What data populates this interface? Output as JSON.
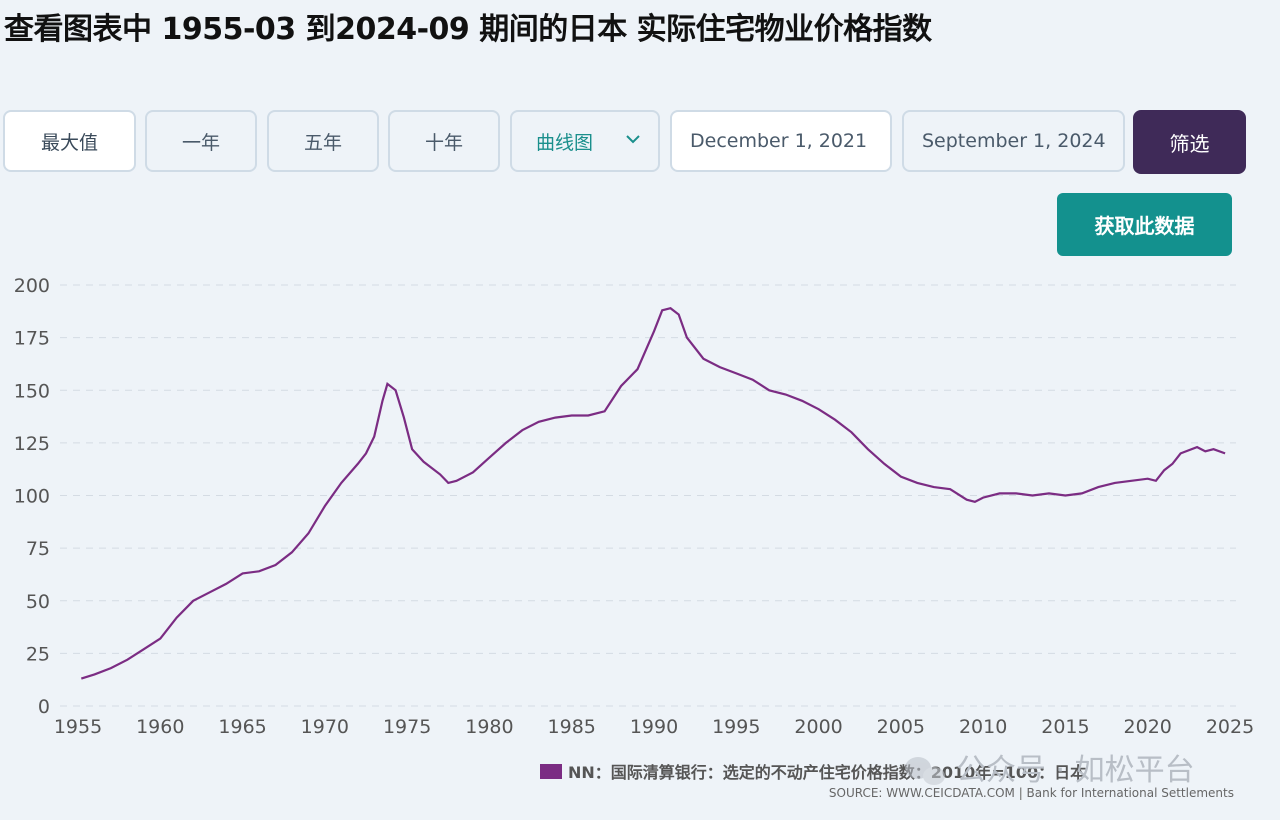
{
  "page": {
    "title": "查看图表中 1955-03 到2024-09 期间的日本 实际住宅物业价格指数"
  },
  "controls": {
    "range_buttons": [
      "最大值",
      "一年",
      "五年",
      "十年"
    ],
    "chart_type": "曲线图",
    "start_date": "December 1, 2021",
    "end_date": "September 1, 2024",
    "filter_label": "筛选",
    "get_data_label": "获取此数据"
  },
  "colors": {
    "line": "#7b2c83",
    "filter_button": "#3f2a58",
    "get_data_button": "#13918e",
    "accent_text": "#1a8f8c"
  },
  "icons": {
    "select_chevron": "chevron-down-icon",
    "watermark_logo": "wechat-icon"
  },
  "watermark": "公众号 · 如松平台",
  "chart_data": {
    "type": "line",
    "title": "",
    "xlabel": "",
    "ylabel": "",
    "xlim": [
      1955,
      2025
    ],
    "ylim": [
      0,
      200
    ],
    "yticks": [
      0,
      25,
      50,
      75,
      100,
      125,
      150,
      175,
      200
    ],
    "xticks": [
      1955,
      1960,
      1965,
      1970,
      1975,
      1980,
      1985,
      1990,
      1995,
      2000,
      2005,
      2010,
      2015,
      2020,
      2025
    ],
    "grid": true,
    "legend": "bottom-right",
    "legend_label": "NN：国际清算银行：选定的不动产住宅价格指数：2010年=100：日本",
    "source": "SOURCE: WWW.CEICDATA.COM | Bank for International Settlements",
    "series": [
      {
        "name": "NN：国际清算银行：选定的不动产住宅价格指数：2010年=100：日本",
        "x": [
          1955.2,
          1956,
          1957,
          1958,
          1959,
          1960,
          1961,
          1962,
          1963,
          1964,
          1965,
          1966,
          1967,
          1968,
          1969,
          1970,
          1971,
          1972,
          1972.5,
          1973,
          1973.5,
          1973.8,
          1974.3,
          1974.8,
          1975.3,
          1976,
          1977,
          1977.5,
          1978,
          1979,
          1980,
          1981,
          1982,
          1983,
          1984,
          1985,
          1986,
          1987,
          1988,
          1989,
          1990,
          1990.5,
          1991,
          1991.5,
          1992,
          1993,
          1994,
          1995,
          1996,
          1997,
          1998,
          1999,
          2000,
          2001,
          2002,
          2003,
          2004,
          2005,
          2006,
          2007,
          2008,
          2009,
          2009.5,
          2010,
          2011,
          2012,
          2013,
          2014,
          2015,
          2016,
          2017,
          2018,
          2019,
          2020,
          2020.5,
          2021,
          2021.5,
          2022,
          2023,
          2023.5,
          2024,
          2024.7
        ],
        "values": [
          13,
          15,
          18,
          22,
          27,
          32,
          42,
          50,
          54,
          58,
          63,
          64,
          67,
          73,
          82,
          95,
          106,
          115,
          120,
          128,
          145,
          153,
          150,
          137,
          122,
          116,
          110,
          106,
          107,
          111,
          118,
          125,
          131,
          135,
          137,
          138,
          138,
          140,
          152,
          160,
          178,
          188,
          189,
          186,
          175,
          165,
          161,
          158,
          155,
          150,
          148,
          145,
          141,
          136,
          130,
          122,
          115,
          109,
          106,
          104,
          103,
          98,
          97,
          99,
          101,
          101,
          100,
          101,
          100,
          101,
          104,
          106,
          107,
          108,
          107,
          112,
          115,
          120,
          123,
          121,
          122,
          120
        ]
      }
    ]
  }
}
